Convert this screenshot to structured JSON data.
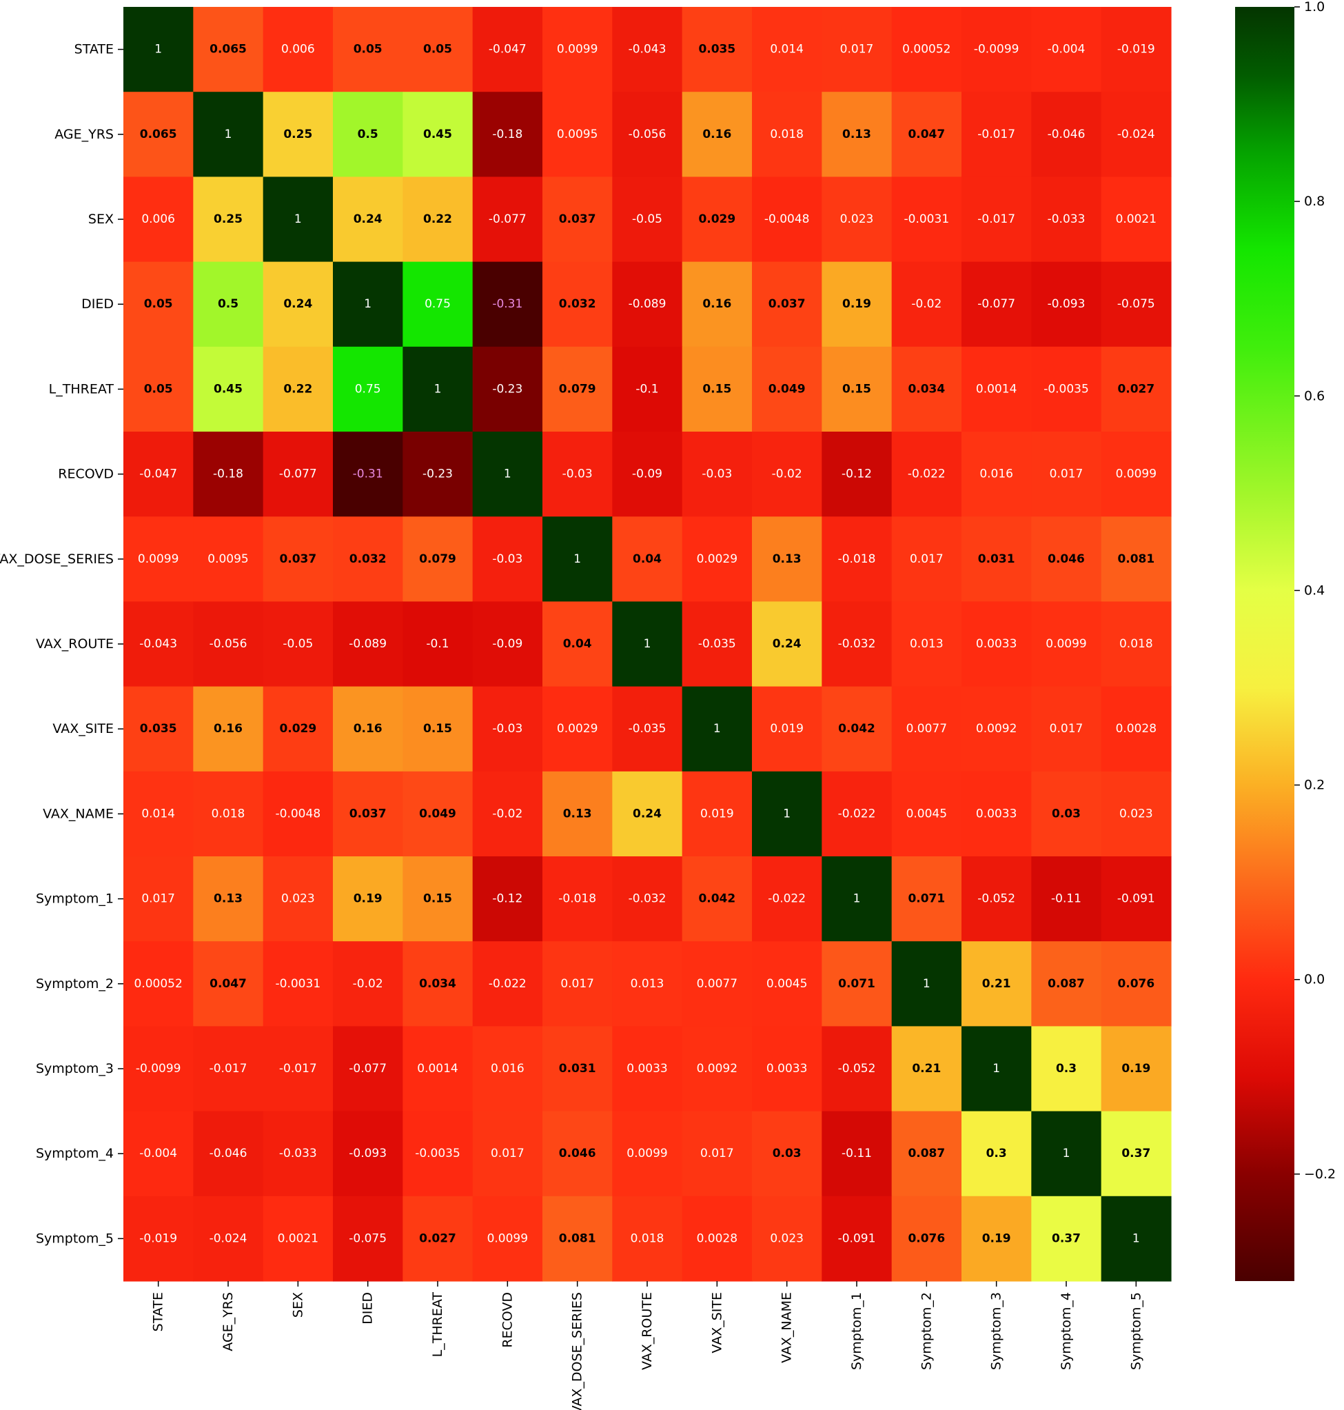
{
  "chart_data": {
    "type": "heatmap",
    "title": "",
    "xlabel": "",
    "ylabel": "",
    "labels": [
      "STATE",
      "AGE_YRS",
      "SEX",
      "DIED",
      "L_THREAT",
      "RECOVD",
      "VAX_DOSE_SERIES",
      "VAX_ROUTE",
      "VAX_SITE",
      "VAX_NAME",
      "Symptom_1",
      "Symptom_2",
      "Symptom_3",
      "Symptom_4",
      "Symptom_5"
    ],
    "values_text": [
      [
        "1",
        "0.065",
        "0.006",
        "0.05",
        "0.05",
        "-0.047",
        "0.0099",
        "-0.043",
        "0.035",
        "0.014",
        "0.017",
        "0.00052",
        "-0.0099",
        "-0.004",
        "-0.019"
      ],
      [
        "0.065",
        "1",
        "0.25",
        "0.5",
        "0.45",
        "-0.18",
        "0.0095",
        "-0.056",
        "0.16",
        "0.018",
        "0.13",
        "0.047",
        "-0.017",
        "-0.046",
        "-0.024"
      ],
      [
        "0.006",
        "0.25",
        "1",
        "0.24",
        "0.22",
        "-0.077",
        "0.037",
        "-0.05",
        "0.029",
        "-0.0048",
        "0.023",
        "-0.0031",
        "-0.017",
        "-0.033",
        "0.0021"
      ],
      [
        "0.05",
        "0.5",
        "0.24",
        "1",
        "0.75",
        "-0.31",
        "0.032",
        "-0.089",
        "0.16",
        "0.037",
        "0.19",
        "-0.02",
        "-0.077",
        "-0.093",
        "-0.075"
      ],
      [
        "0.05",
        "0.45",
        "0.22",
        "0.75",
        "1",
        "-0.23",
        "0.079",
        "-0.1",
        "0.15",
        "0.049",
        "0.15",
        "0.034",
        "0.0014",
        "-0.0035",
        "0.027"
      ],
      [
        "-0.047",
        "-0.18",
        "-0.077",
        "-0.31",
        "-0.23",
        "1",
        "-0.03",
        "-0.09",
        "-0.03",
        "-0.02",
        "-0.12",
        "-0.022",
        "0.016",
        "0.017",
        "0.0099"
      ],
      [
        "0.0099",
        "0.0095",
        "0.037",
        "0.032",
        "0.079",
        "-0.03",
        "1",
        "0.04",
        "0.0029",
        "0.13",
        "-0.018",
        "0.017",
        "0.031",
        "0.046",
        "0.081"
      ],
      [
        "-0.043",
        "-0.056",
        "-0.05",
        "-0.089",
        "-0.1",
        "-0.09",
        "0.04",
        "1",
        "-0.035",
        "0.24",
        "-0.032",
        "0.013",
        "0.0033",
        "0.0099",
        "0.018"
      ],
      [
        "0.035",
        "0.16",
        "0.029",
        "0.16",
        "0.15",
        "-0.03",
        "0.0029",
        "-0.035",
        "1",
        "0.019",
        "0.042",
        "0.0077",
        "0.0092",
        "0.017",
        "0.0028"
      ],
      [
        "0.014",
        "0.018",
        "-0.0048",
        "0.037",
        "0.049",
        "-0.02",
        "0.13",
        "0.24",
        "0.019",
        "1",
        "-0.022",
        "0.0045",
        "0.0033",
        "0.03",
        "0.023"
      ],
      [
        "0.017",
        "0.13",
        "0.023",
        "0.19",
        "0.15",
        "-0.12",
        "-0.018",
        "-0.032",
        "0.042",
        "-0.022",
        "1",
        "0.071",
        "-0.052",
        "-0.11",
        "-0.091"
      ],
      [
        "0.00052",
        "0.047",
        "-0.0031",
        "-0.02",
        "0.034",
        "-0.022",
        "0.017",
        "0.013",
        "0.0077",
        "0.0045",
        "0.071",
        "1",
        "0.21",
        "0.087",
        "0.076"
      ],
      [
        "-0.0099",
        "-0.017",
        "-0.017",
        "-0.077",
        "0.0014",
        "0.016",
        "0.031",
        "0.0033",
        "0.0092",
        "0.0033",
        "-0.052",
        "0.21",
        "1",
        "0.3",
        "0.19"
      ],
      [
        "-0.004",
        "-0.046",
        "-0.033",
        "-0.093",
        "-0.0035",
        "0.017",
        "0.046",
        "0.0099",
        "0.017",
        "0.03",
        "-0.11",
        "0.087",
        "0.3",
        "1",
        "0.37"
      ],
      [
        "-0.019",
        "-0.024",
        "0.0021",
        "-0.075",
        "0.027",
        "0.0099",
        "0.081",
        "0.018",
        "0.0028",
        "0.023",
        "-0.091",
        "0.076",
        "0.19",
        "0.37",
        "1"
      ]
    ],
    "colorscale": {
      "min": -0.31,
      "max": 1.0,
      "stops": [
        {
          "value": -0.31,
          "color": "#4a0000"
        },
        {
          "value": -0.2,
          "color": "#8a0000"
        },
        {
          "value": -0.1,
          "color": "#dd0a05"
        },
        {
          "value": 0.0,
          "color": "#ff2a10"
        },
        {
          "value": 0.1,
          "color": "#fc6a1c"
        },
        {
          "value": 0.2,
          "color": "#fbb024"
        },
        {
          "value": 0.3,
          "color": "#f7f040"
        },
        {
          "value": 0.4,
          "color": "#e4ff45"
        },
        {
          "value": 0.5,
          "color": "#a2f62a"
        },
        {
          "value": 0.65,
          "color": "#40ee0c"
        },
        {
          "value": 0.75,
          "color": "#14e600"
        },
        {
          "value": 0.85,
          "color": "#05a300"
        },
        {
          "value": 0.93,
          "color": "#025c00"
        },
        {
          "value": 1.0,
          "color": "#043500"
        }
      ]
    },
    "colorbar_ticks": [
      "1.0",
      "0.8",
      "0.6",
      "0.4",
      "0.2",
      "0.0",
      "−0.2"
    ],
    "colorbar_tick_values": [
      1.0,
      0.8,
      0.6,
      0.4,
      0.2,
      0.0,
      -0.2
    ],
    "grid": false,
    "legend": "right"
  }
}
